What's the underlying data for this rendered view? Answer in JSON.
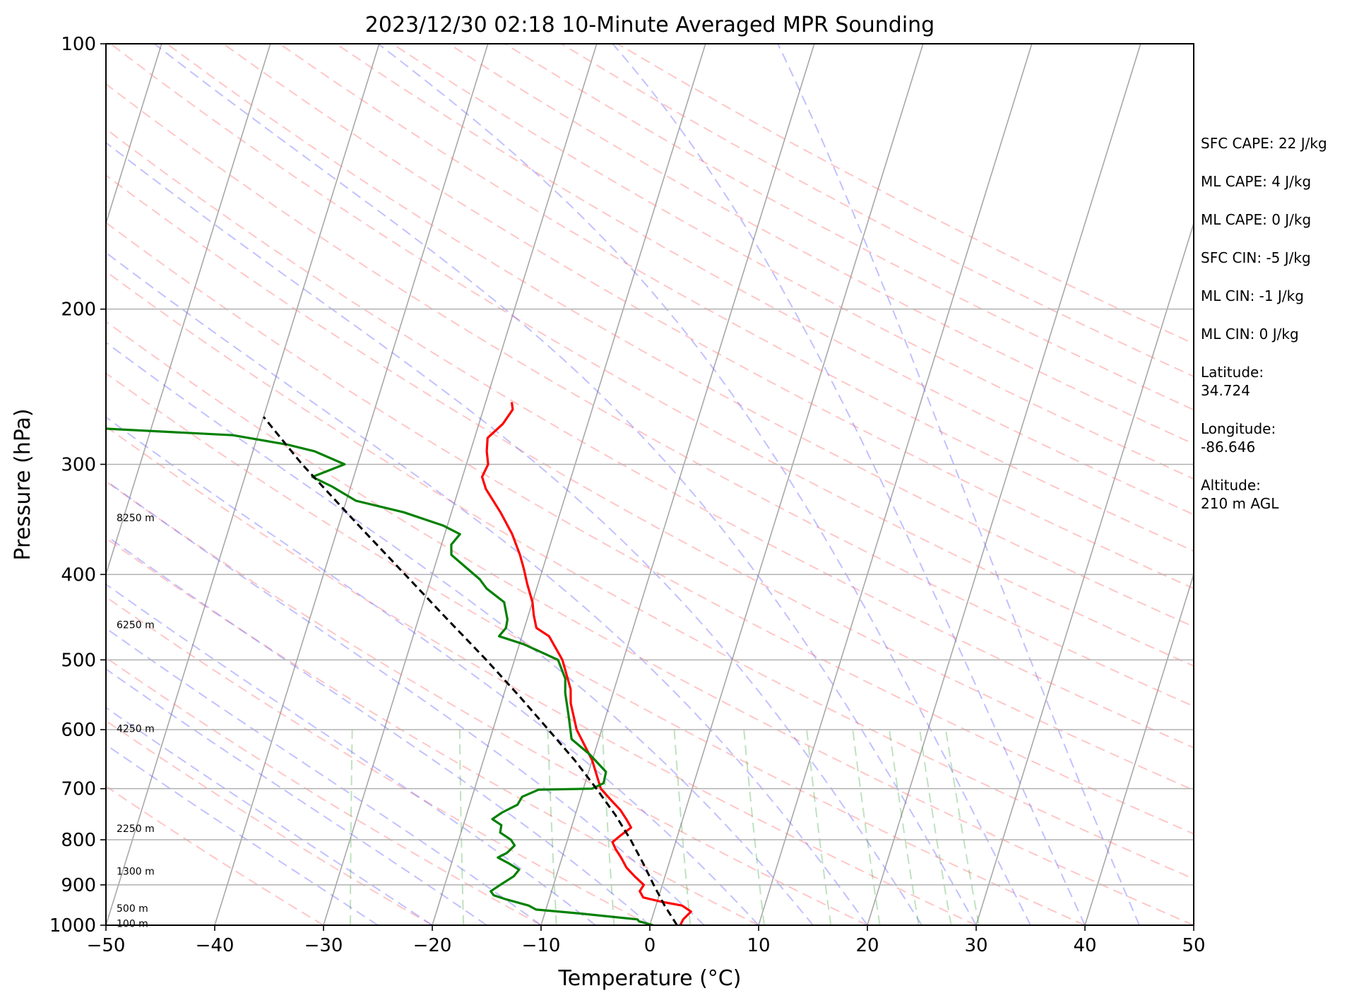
{
  "chart_data": {
    "type": "line",
    "title": "2023/12/30 02:18 10-Minute Averaged MPR Sounding",
    "xlabel": "Temperature (°C)",
    "ylabel": "Pressure (hPa)",
    "xlim": [
      -50,
      50
    ],
    "ylim": [
      1000,
      100
    ],
    "yscale": "log",
    "skew": true,
    "grid": true,
    "x_ticks": [
      "−50",
      "−40",
      "−30",
      "−20",
      "−10",
      "0",
      "10",
      "20",
      "30",
      "40",
      "50"
    ],
    "x_tick_values": [
      -50,
      -40,
      -30,
      -20,
      -10,
      0,
      10,
      20,
      30,
      40,
      50
    ],
    "y_ticks": [
      "100",
      "200",
      "300",
      "400",
      "500",
      "600",
      "700",
      "800",
      "900",
      "1000"
    ],
    "y_tick_values": [
      100,
      200,
      300,
      400,
      500,
      600,
      700,
      800,
      900,
      1000
    ],
    "height_labels": [
      {
        "text": "8250 m",
        "p": 345
      },
      {
        "text": "6250 m",
        "p": 456
      },
      {
        "text": "4250 m",
        "p": 598
      },
      {
        "text": "2250 m",
        "p": 777
      },
      {
        "text": "1300 m",
        "p": 868
      },
      {
        "text": "500 m",
        "p": 957
      },
      {
        "text": "100 m",
        "p": 995
      }
    ],
    "series": [
      {
        "kind": "temperature",
        "color": "#ff0000",
        "points": [
          [
            1000,
            2.8
          ],
          [
            985,
            2.9
          ],
          [
            965,
            3.4
          ],
          [
            950,
            2.4
          ],
          [
            940,
            0.3
          ],
          [
            930,
            -1.4
          ],
          [
            915,
            -1.9
          ],
          [
            900,
            -1.7
          ],
          [
            880,
            -2.8
          ],
          [
            860,
            -3.8
          ],
          [
            840,
            -4.5
          ],
          [
            820,
            -5.3
          ],
          [
            805,
            -5.8
          ],
          [
            790,
            -5.2
          ],
          [
            775,
            -4.5
          ],
          [
            760,
            -5.1
          ],
          [
            740,
            -6.0
          ],
          [
            720,
            -7.2
          ],
          [
            700,
            -8.4
          ],
          [
            650,
            -10.0
          ],
          [
            600,
            -12.3
          ],
          [
            560,
            -13.6
          ],
          [
            540,
            -14.0
          ],
          [
            500,
            -15.6
          ],
          [
            470,
            -17.5
          ],
          [
            460,
            -18.9
          ],
          [
            445,
            -19.5
          ],
          [
            430,
            -20.0
          ],
          [
            410,
            -21.0
          ],
          [
            395,
            -21.7
          ],
          [
            380,
            -22.5
          ],
          [
            360,
            -23.8
          ],
          [
            340,
            -25.5
          ],
          [
            320,
            -27.5
          ],
          [
            310,
            -28.2
          ],
          [
            300,
            -28.0
          ],
          [
            290,
            -28.5
          ],
          [
            280,
            -28.8
          ],
          [
            270,
            -27.8
          ],
          [
            260,
            -27.3
          ],
          [
            255,
            -27.6
          ]
        ]
      },
      {
        "kind": "dewpoint",
        "color": "#008000",
        "points": [
          [
            1000,
            0.3
          ],
          [
            990,
            -1.1
          ],
          [
            985,
            -1.3
          ],
          [
            970,
            -6.7
          ],
          [
            960,
            -10.9
          ],
          [
            950,
            -11.7
          ],
          [
            935,
            -13.9
          ],
          [
            925,
            -15.2
          ],
          [
            915,
            -15.6
          ],
          [
            900,
            -14.9
          ],
          [
            880,
            -13.9
          ],
          [
            865,
            -13.6
          ],
          [
            850,
            -14.8
          ],
          [
            838,
            -15.9
          ],
          [
            828,
            -15.2
          ],
          [
            812,
            -14.7
          ],
          [
            800,
            -15.2
          ],
          [
            785,
            -16.4
          ],
          [
            770,
            -16.5
          ],
          [
            758,
            -17.5
          ],
          [
            745,
            -16.8
          ],
          [
            730,
            -15.6
          ],
          [
            715,
            -15.4
          ],
          [
            702,
            -14.1
          ],
          [
            700,
            -9.2
          ],
          [
            690,
            -8.3
          ],
          [
            670,
            -8.4
          ],
          [
            640,
            -10.4
          ],
          [
            615,
            -12.5
          ],
          [
            580,
            -13.4
          ],
          [
            545,
            -14.4
          ],
          [
            525,
            -14.8
          ],
          [
            500,
            -16.0
          ],
          [
            480,
            -19.6
          ],
          [
            470,
            -22.1
          ],
          [
            460,
            -21.7
          ],
          [
            450,
            -21.8
          ],
          [
            430,
            -22.6
          ],
          [
            415,
            -24.6
          ],
          [
            405,
            -25.5
          ],
          [
            380,
            -28.8
          ],
          [
            370,
            -29.1
          ],
          [
            360,
            -28.6
          ],
          [
            352,
            -30.4
          ],
          [
            340,
            -34.4
          ],
          [
            330,
            -39.1
          ],
          [
            318,
            -41.7
          ],
          [
            310,
            -43.8
          ],
          [
            300,
            -41.2
          ],
          [
            290,
            -44.3
          ],
          [
            285,
            -47.0
          ],
          [
            278,
            -52.3
          ],
          [
            272,
            -67.6
          ]
        ]
      },
      {
        "kind": "parcel",
        "color": "#000000",
        "style": "dashed",
        "points": [
          [
            1000,
            2.5
          ],
          [
            950,
            0.8
          ],
          [
            900,
            -0.8
          ],
          [
            850,
            -2.4
          ],
          [
            800,
            -4.2
          ],
          [
            750,
            -6.3
          ],
          [
            700,
            -8.8
          ],
          [
            650,
            -11.6
          ],
          [
            600,
            -14.9
          ],
          [
            550,
            -18.5
          ],
          [
            500,
            -22.6
          ],
          [
            450,
            -27.3
          ],
          [
            400,
            -32.5
          ],
          [
            350,
            -38.4
          ],
          [
            300,
            -45.1
          ],
          [
            265,
            -50.0
          ]
        ]
      }
    ],
    "background_lines": [
      "dry adiabats",
      "moist adiabats",
      "mixing ratio lines",
      "isotherms"
    ]
  },
  "info_panel": [
    "SFC CAPE: 22 J/kg",
    "ML CAPE: 4 J/kg",
    "ML CAPE: 0 J/kg",
    "SFC CIN: -5 J/kg",
    "ML CIN: -1 J/kg",
    "ML CIN: 0 J/kg",
    "Latitude:\n34.724",
    "Longitude:\n-86.646",
    "Altitude:\n210 m AGL"
  ]
}
